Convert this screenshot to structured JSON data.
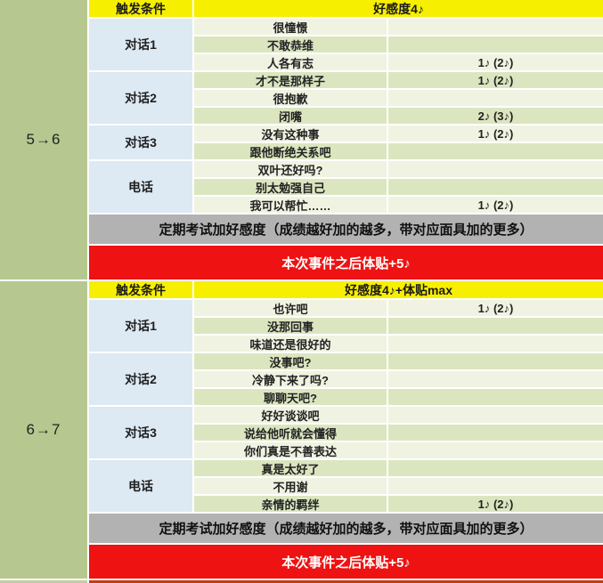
{
  "colors": {
    "left_column_green": "#b6c88f",
    "header_yellow": "#f7ef00",
    "dialog_label_blue": "#dde9f3",
    "row_pale": "#f0f3e1",
    "row_green": "#dbe6c0",
    "exam_note_gray": "#b2b2b2",
    "event_note_red": "#ee1212",
    "bottom_strip": "#c23c0f"
  },
  "sections": [
    {
      "range_label": "5→6",
      "header": {
        "trigger_label": "触发条件",
        "condition": "好感度4♪"
      },
      "groups": [
        {
          "label": "对话1",
          "options": [
            {
              "text": "很憧憬",
              "value": ""
            },
            {
              "text": "不敢恭维",
              "value": ""
            },
            {
              "text": "人各有志",
              "value": "1♪ (2♪)"
            }
          ]
        },
        {
          "label": "对话2",
          "options": [
            {
              "text": "才不是那样子",
              "value": "1♪ (2♪)"
            },
            {
              "text": "很抱歉",
              "value": ""
            },
            {
              "text": "闭嘴",
              "value": "2♪ (3♪)"
            }
          ]
        },
        {
          "label": "对话3",
          "options": [
            {
              "text": "没有这种事",
              "value": "1♪ (2♪)"
            },
            {
              "text": "跟他断绝关系吧",
              "value": ""
            }
          ]
        },
        {
          "label": "电话",
          "options": [
            {
              "text": "双叶还好吗?",
              "value": ""
            },
            {
              "text": "别太勉强自己",
              "value": ""
            },
            {
              "text": "我可以帮忙……",
              "value": "1♪ (2♪)"
            }
          ]
        }
      ],
      "exam_note": "定期考试加好感度（成绩越好加的越多，带对应面具加的更多）",
      "event_note": "本次事件之后体贴+5♪"
    },
    {
      "range_label": "6→7",
      "header": {
        "trigger_label": "触发条件",
        "condition": "好感度4♪+体贴max"
      },
      "groups": [
        {
          "label": "对话1",
          "options": [
            {
              "text": "也许吧",
              "value": "1♪ (2♪)"
            },
            {
              "text": "没那回事",
              "value": ""
            },
            {
              "text": "味道还是很好的",
              "value": ""
            }
          ]
        },
        {
          "label": "对话2",
          "options": [
            {
              "text": "没事吧?",
              "value": ""
            },
            {
              "text": "冷静下来了吗?",
              "value": ""
            },
            {
              "text": "聊聊天吧?",
              "value": ""
            }
          ]
        },
        {
          "label": "对话3",
          "options": [
            {
              "text": "好好谈谈吧",
              "value": ""
            },
            {
              "text": "说给他听就会懂得",
              "value": ""
            },
            {
              "text": "你们真是不善表达",
              "value": ""
            }
          ]
        },
        {
          "label": "电话",
          "options": [
            {
              "text": "真是太好了",
              "value": ""
            },
            {
              "text": "不用谢",
              "value": ""
            },
            {
              "text": "亲情的羁绊",
              "value": "1♪ (2♪)"
            }
          ]
        }
      ],
      "exam_note": "定期考试加好感度（成绩越好加的越多，带对应面具加的更多）",
      "event_note": "本次事件之后体贴+5♪"
    }
  ]
}
